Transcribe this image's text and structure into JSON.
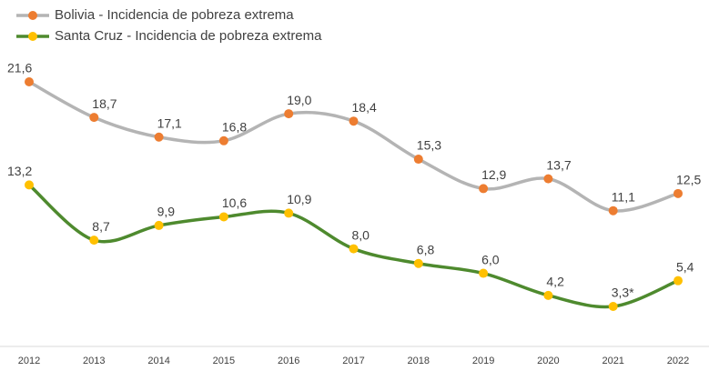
{
  "chart_data": {
    "type": "line",
    "categories": [
      "2012",
      "2013",
      "2014",
      "2015",
      "2016",
      "2017",
      "2018",
      "2019",
      "2020",
      "2021",
      "2022"
    ],
    "series": [
      {
        "name": "Bolivia - Incidencia de pobreza extrema",
        "color": "#b4b4b4",
        "marker_color": "#ed7d31",
        "values": [
          21.6,
          18.7,
          17.1,
          16.8,
          19.0,
          18.4,
          15.3,
          12.9,
          13.7,
          11.1,
          12.5
        ],
        "value_labels": [
          "21,6",
          "18,7",
          "17,1",
          "16,8",
          "19,0",
          "18,4",
          "15,3",
          "12,9",
          "13,7",
          "11,1",
          "12,5"
        ]
      },
      {
        "name": "Santa Cruz - Incidencia de pobreza extrema",
        "color": "#4e8a2e",
        "marker_color": "#ffc000",
        "values": [
          13.2,
          8.7,
          9.9,
          10.6,
          10.9,
          8.0,
          6.8,
          6.0,
          4.2,
          3.3,
          5.4
        ],
        "value_labels": [
          "13,2",
          "8,7",
          "9,9",
          "10,6",
          "10,9",
          "8,0",
          "6,8",
          "6,0",
          "4,2",
          "3,3*",
          "5,4"
        ]
      }
    ],
    "legend": "top-left"
  }
}
